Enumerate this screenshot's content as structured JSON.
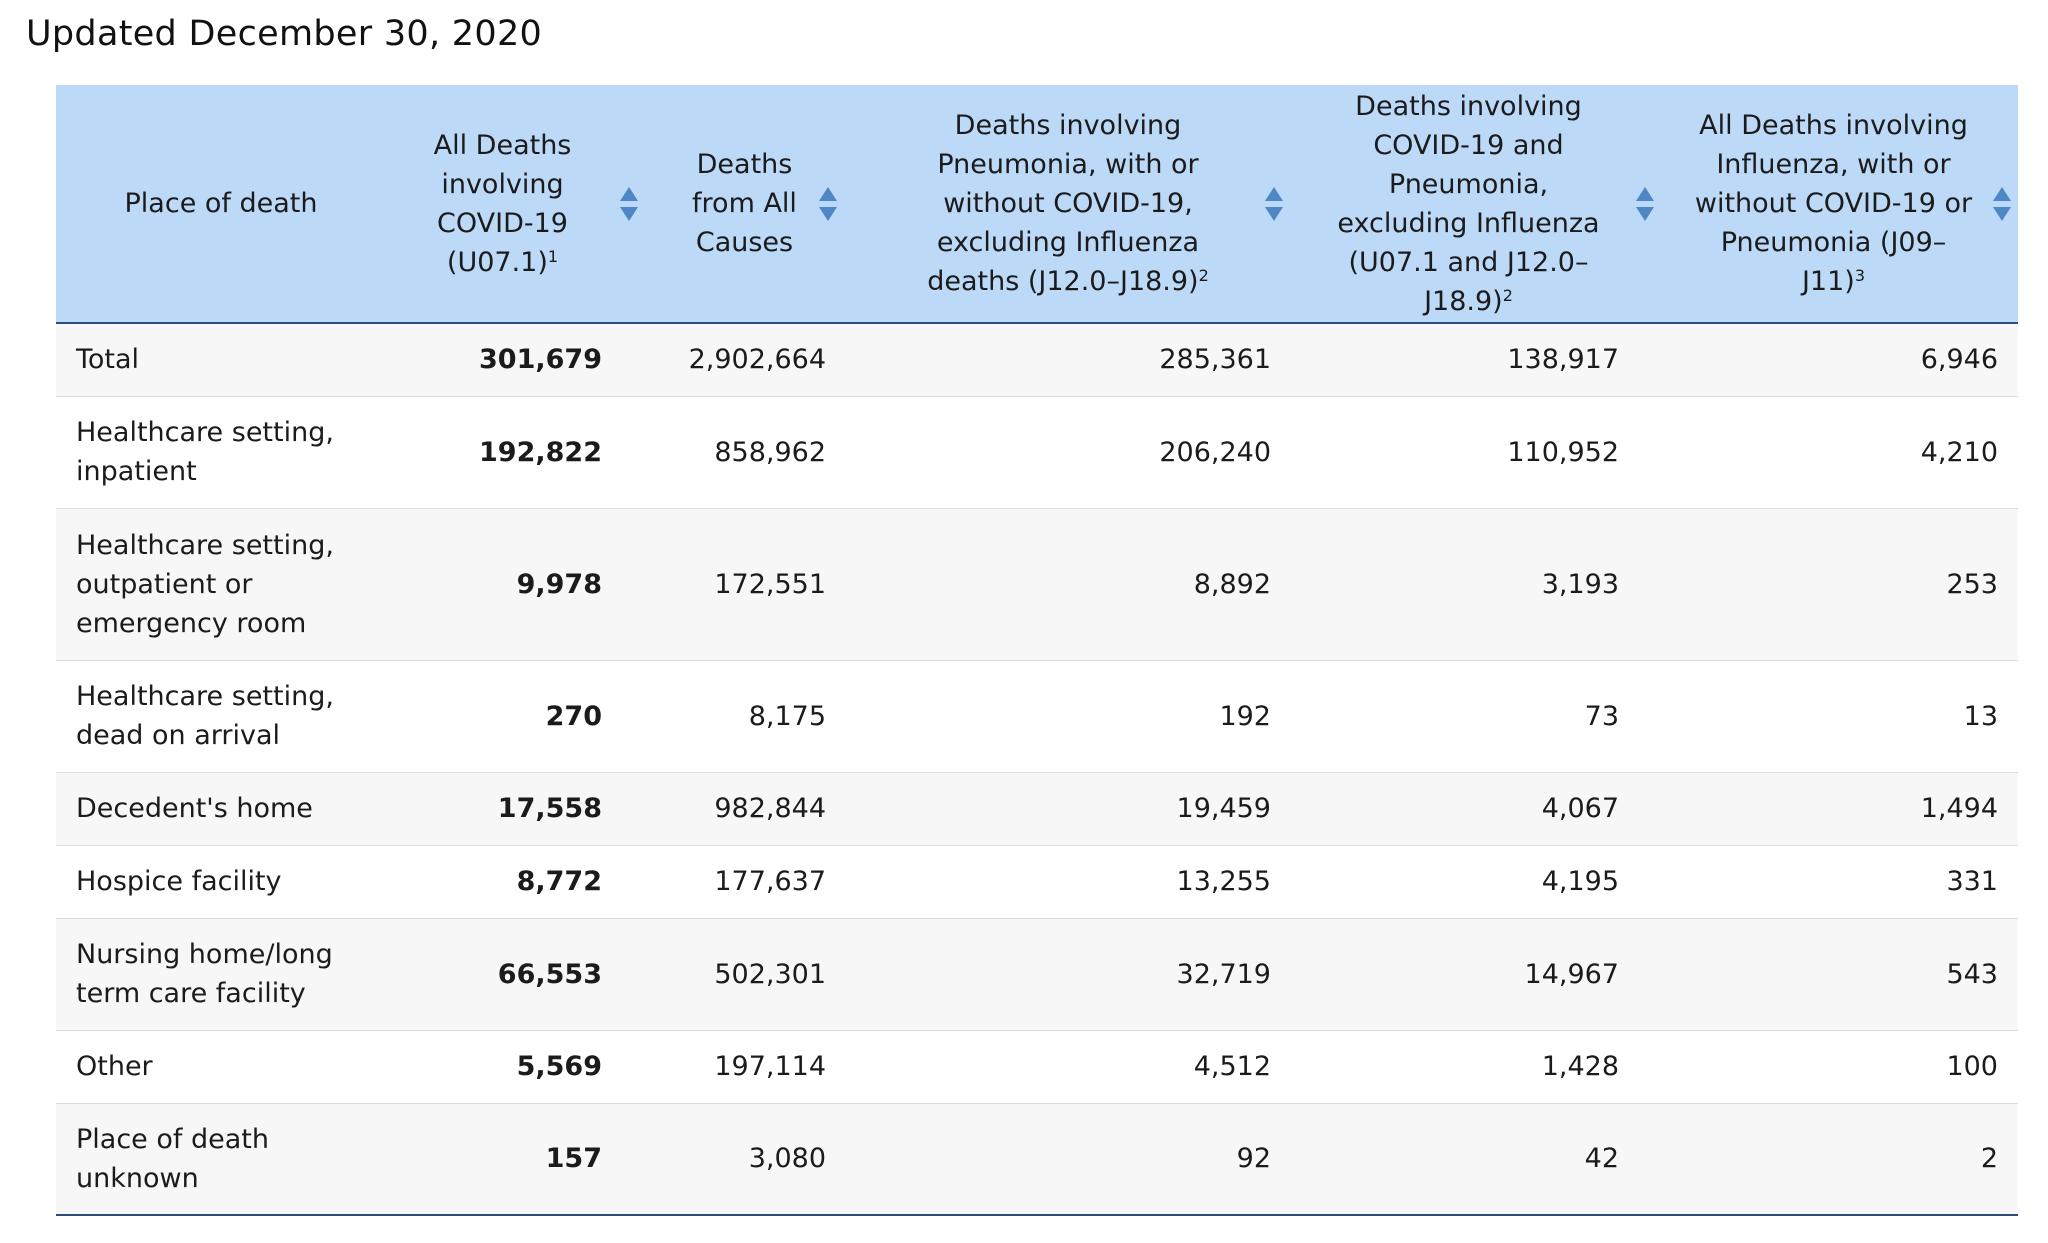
{
  "title": "Updated December 30, 2020",
  "table": {
    "headers": [
      {
        "text": "Place of death",
        "sortable": false
      },
      {
        "text": "All Deaths involving COVID-19 (U07.1)",
        "sup": "1",
        "sortable": true
      },
      {
        "text": "Deaths from All Causes",
        "sup": "",
        "sortable": true
      },
      {
        "text": "Deaths involving Pneumonia, with or without COVID-19, excluding Influenza deaths (J12.0–J18.9)",
        "sup": "2",
        "sortable": true
      },
      {
        "text": "Deaths involving COVID-19 and Pneumonia, excluding Influenza (U07.1 and J12.0–J18.9)",
        "sup": "2",
        "sortable": true
      },
      {
        "text": "All Deaths involving Influenza, with or without COVID-19 or Pneumonia (J09–J11)",
        "sup": "3",
        "sortable": true
      }
    ],
    "rows": [
      {
        "place": "Total",
        "covid": "301,679",
        "all_causes": "2,902,664",
        "pneumonia": "285,361",
        "covid_pneumonia": "138,917",
        "influenza": "6,946"
      },
      {
        "place": "Healthcare setting, inpatient",
        "covid": "192,822",
        "all_causes": "858,962",
        "pneumonia": "206,240",
        "covid_pneumonia": "110,952",
        "influenza": "4,210"
      },
      {
        "place": "Healthcare setting, outpatient or emergency room",
        "covid": "9,978",
        "all_causes": "172,551",
        "pneumonia": "8,892",
        "covid_pneumonia": "3,193",
        "influenza": "253"
      },
      {
        "place": "Healthcare setting, dead on arrival",
        "covid": "270",
        "all_causes": "8,175",
        "pneumonia": "192",
        "covid_pneumonia": "73",
        "influenza": "13"
      },
      {
        "place": "Decedent's home",
        "covid": "17,558",
        "all_causes": "982,844",
        "pneumonia": "19,459",
        "covid_pneumonia": "4,067",
        "influenza": "1,494"
      },
      {
        "place": "Hospice facility",
        "covid": "8,772",
        "all_causes": "177,637",
        "pneumonia": "13,255",
        "covid_pneumonia": "4,195",
        "influenza": "331"
      },
      {
        "place": "Nursing home/long term care facility",
        "covid": "66,553",
        "all_causes": "502,301",
        "pneumonia": "32,719",
        "covid_pneumonia": "14,967",
        "influenza": "543"
      },
      {
        "place": "Other",
        "covid": "5,569",
        "all_causes": "197,114",
        "pneumonia": "4,512",
        "covid_pneumonia": "1,428",
        "influenza": "100"
      },
      {
        "place": "Place of death unknown",
        "covid": "157",
        "all_causes": "3,080",
        "pneumonia": "92",
        "covid_pneumonia": "42",
        "influenza": "2"
      }
    ]
  },
  "colors": {
    "header_bg": "#bcd9f7",
    "sort_icon": "#4f86c6",
    "row_alt": "#f7f7f7",
    "rule": "#2a4d7a"
  },
  "icons": {
    "sort": "sort-arrows-icon"
  }
}
